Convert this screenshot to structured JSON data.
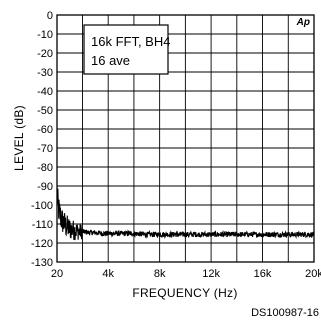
{
  "chart_data": {
    "type": "line",
    "title": "",
    "xlabel": "FREQUENCY (Hz)",
    "ylabel": "LEVEL (dB)",
    "xlim": [
      20,
      20000
    ],
    "ylim": [
      -130,
      0
    ],
    "x_tick_labels": [
      "20",
      "4k",
      "8k",
      "12k",
      "16k",
      "20k"
    ],
    "x_tick_values": [
      20,
      4000,
      8000,
      12000,
      16000,
      20000
    ],
    "y_tick_values": [
      0,
      -10,
      -20,
      -30,
      -40,
      -50,
      -60,
      -70,
      -80,
      -90,
      -100,
      -110,
      -120,
      -130
    ],
    "grid": true,
    "annotation_lines": [
      "16k FFT, BH4",
      "16 ave"
    ],
    "logo_text": "Ap",
    "series": [
      {
        "x": [
          20,
          100,
          200,
          300,
          400,
          500,
          600,
          700,
          800,
          900,
          1000,
          1200,
          1500,
          1800,
          2000,
          2500,
          3000,
          3500,
          4000,
          5000,
          6000,
          7000,
          8000,
          9000,
          10000,
          11000,
          12000,
          13000,
          14000,
          15000,
          16000,
          17000,
          18000,
          19000,
          20000
        ],
        "y": [
          -95,
          -100,
          -104,
          -106,
          -108,
          -109,
          -110,
          -111,
          -111.5,
          -112,
          -112.5,
          -113,
          -113.5,
          -114,
          -114,
          -114.5,
          -114.5,
          -115,
          -115,
          -115,
          -115,
          -115.5,
          -115.5,
          -115.5,
          -115.5,
          -115.5,
          -115.5,
          -115.5,
          -115.5,
          -115.5,
          -115.5,
          -115.5,
          -115.5,
          -115.5,
          -115.5
        ]
      }
    ]
  },
  "footer": {
    "doc_id": "DS100987-16"
  }
}
